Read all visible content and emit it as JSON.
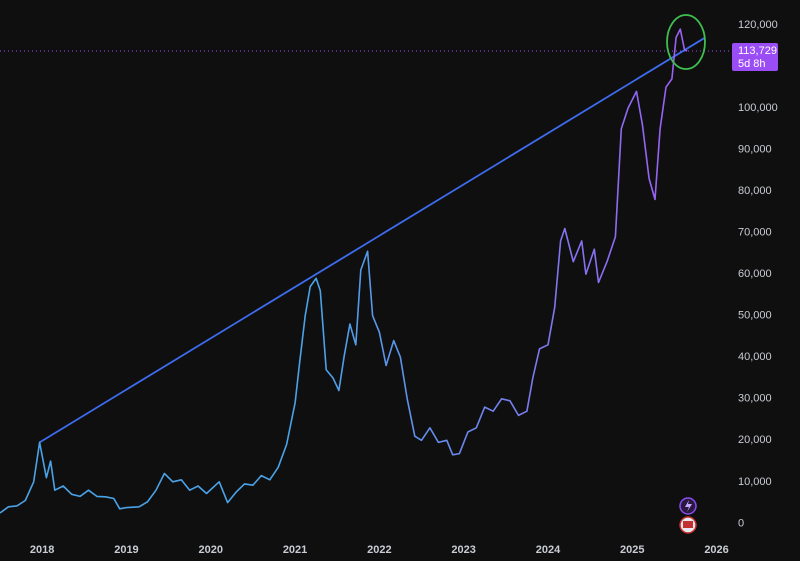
{
  "chart_data": {
    "type": "line",
    "x": [
      2017.5,
      2017.6,
      2017.7,
      2017.8,
      2017.9,
      2017.97,
      2018.05,
      2018.1,
      2018.15,
      2018.25,
      2018.35,
      2018.45,
      2018.55,
      2018.65,
      2018.75,
      2018.85,
      2018.92,
      2019.0,
      2019.15,
      2019.25,
      2019.35,
      2019.45,
      2019.55,
      2019.65,
      2019.75,
      2019.85,
      2019.95,
      2020.1,
      2020.2,
      2020.3,
      2020.4,
      2020.5,
      2020.6,
      2020.7,
      2020.8,
      2020.9,
      2021.0,
      2021.05,
      2021.12,
      2021.18,
      2021.25,
      2021.3,
      2021.37,
      2021.45,
      2021.52,
      2021.58,
      2021.65,
      2021.72,
      2021.78,
      2021.86,
      2021.92,
      2022.0,
      2022.08,
      2022.17,
      2022.25,
      2022.33,
      2022.42,
      2022.5,
      2022.6,
      2022.7,
      2022.8,
      2022.87,
      2022.95,
      2023.05,
      2023.15,
      2023.25,
      2023.35,
      2023.45,
      2023.55,
      2023.65,
      2023.75,
      2023.82,
      2023.9,
      2024.0,
      2024.08,
      2024.15,
      2024.2,
      2024.3,
      2024.4,
      2024.45,
      2024.55,
      2024.6,
      2024.7,
      2024.8,
      2024.87,
      2024.95,
      2025.05,
      2025.12,
      2025.2,
      2025.27,
      2025.33,
      2025.4,
      2025.47,
      2025.52,
      2025.57,
      2025.62,
      2025.65
    ],
    "values": [
      2500,
      4000,
      4200,
      5500,
      10000,
      19500,
      11000,
      15000,
      8000,
      9000,
      7000,
      6500,
      8000,
      6500,
      6400,
      6000,
      3500,
      3800,
      4000,
      5200,
      8000,
      12000,
      10000,
      10500,
      8000,
      9000,
      7200,
      10000,
      5000,
      7500,
      9500,
      9200,
      11500,
      10500,
      13500,
      19000,
      29000,
      38000,
      50000,
      57000,
      59000,
      56000,
      37000,
      35000,
      32000,
      40000,
      48000,
      43000,
      61000,
      65500,
      50000,
      46000,
      38000,
      44000,
      40000,
      30000,
      21000,
      20000,
      23000,
      19500,
      20000,
      16500,
      16800,
      22000,
      23000,
      28000,
      27000,
      30000,
      29500,
      26000,
      27000,
      35000,
      42000,
      43000,
      52000,
      68000,
      71000,
      63000,
      68000,
      60000,
      66000,
      58000,
      63000,
      69000,
      95000,
      100000,
      104000,
      96000,
      83000,
      78000,
      95000,
      105000,
      107000,
      117000,
      119000,
      114000,
      113729
    ],
    "color": "#4aa3e8",
    "color_end": "#a05cf5",
    "trend_line": {
      "x": [
        2017.97,
        2025.86
      ],
      "values": [
        19500,
        116900
      ],
      "color": "#3d6cf0"
    },
    "last_price": 113729,
    "last_price_label": "113,729",
    "countdown": "5d 8h",
    "price_color": "#9a4cf5",
    "xlim": [
      2017.5,
      2026.1
    ],
    "xticks": [
      2018,
      2019,
      2020,
      2021,
      2022,
      2023,
      2024,
      2025,
      2026
    ],
    "ylim": [
      -4000,
      126000
    ],
    "yticks": [
      0,
      {
        "value": 10000,
        "label": "10,000"
      },
      {
        "value": 20000,
        "label": "20,000"
      },
      {
        "value": 30000,
        "label": "30,000"
      },
      {
        "value": 40000,
        "label": "40,000"
      },
      {
        "value": 50000,
        "label": "50,000"
      },
      {
        "value": 60000,
        "label": "60,000"
      },
      {
        "value": 70000,
        "label": "70,000"
      },
      {
        "value": 80000,
        "label": "80,000"
      },
      {
        "value": 90000,
        "label": "90,000"
      },
      {
        "value": 100000,
        "label": "100,000"
      },
      {
        "value": 110000,
        "label": "110,000"
      },
      {
        "value": 120000,
        "label": "120,000"
      }
    ],
    "grid": false
  }
}
